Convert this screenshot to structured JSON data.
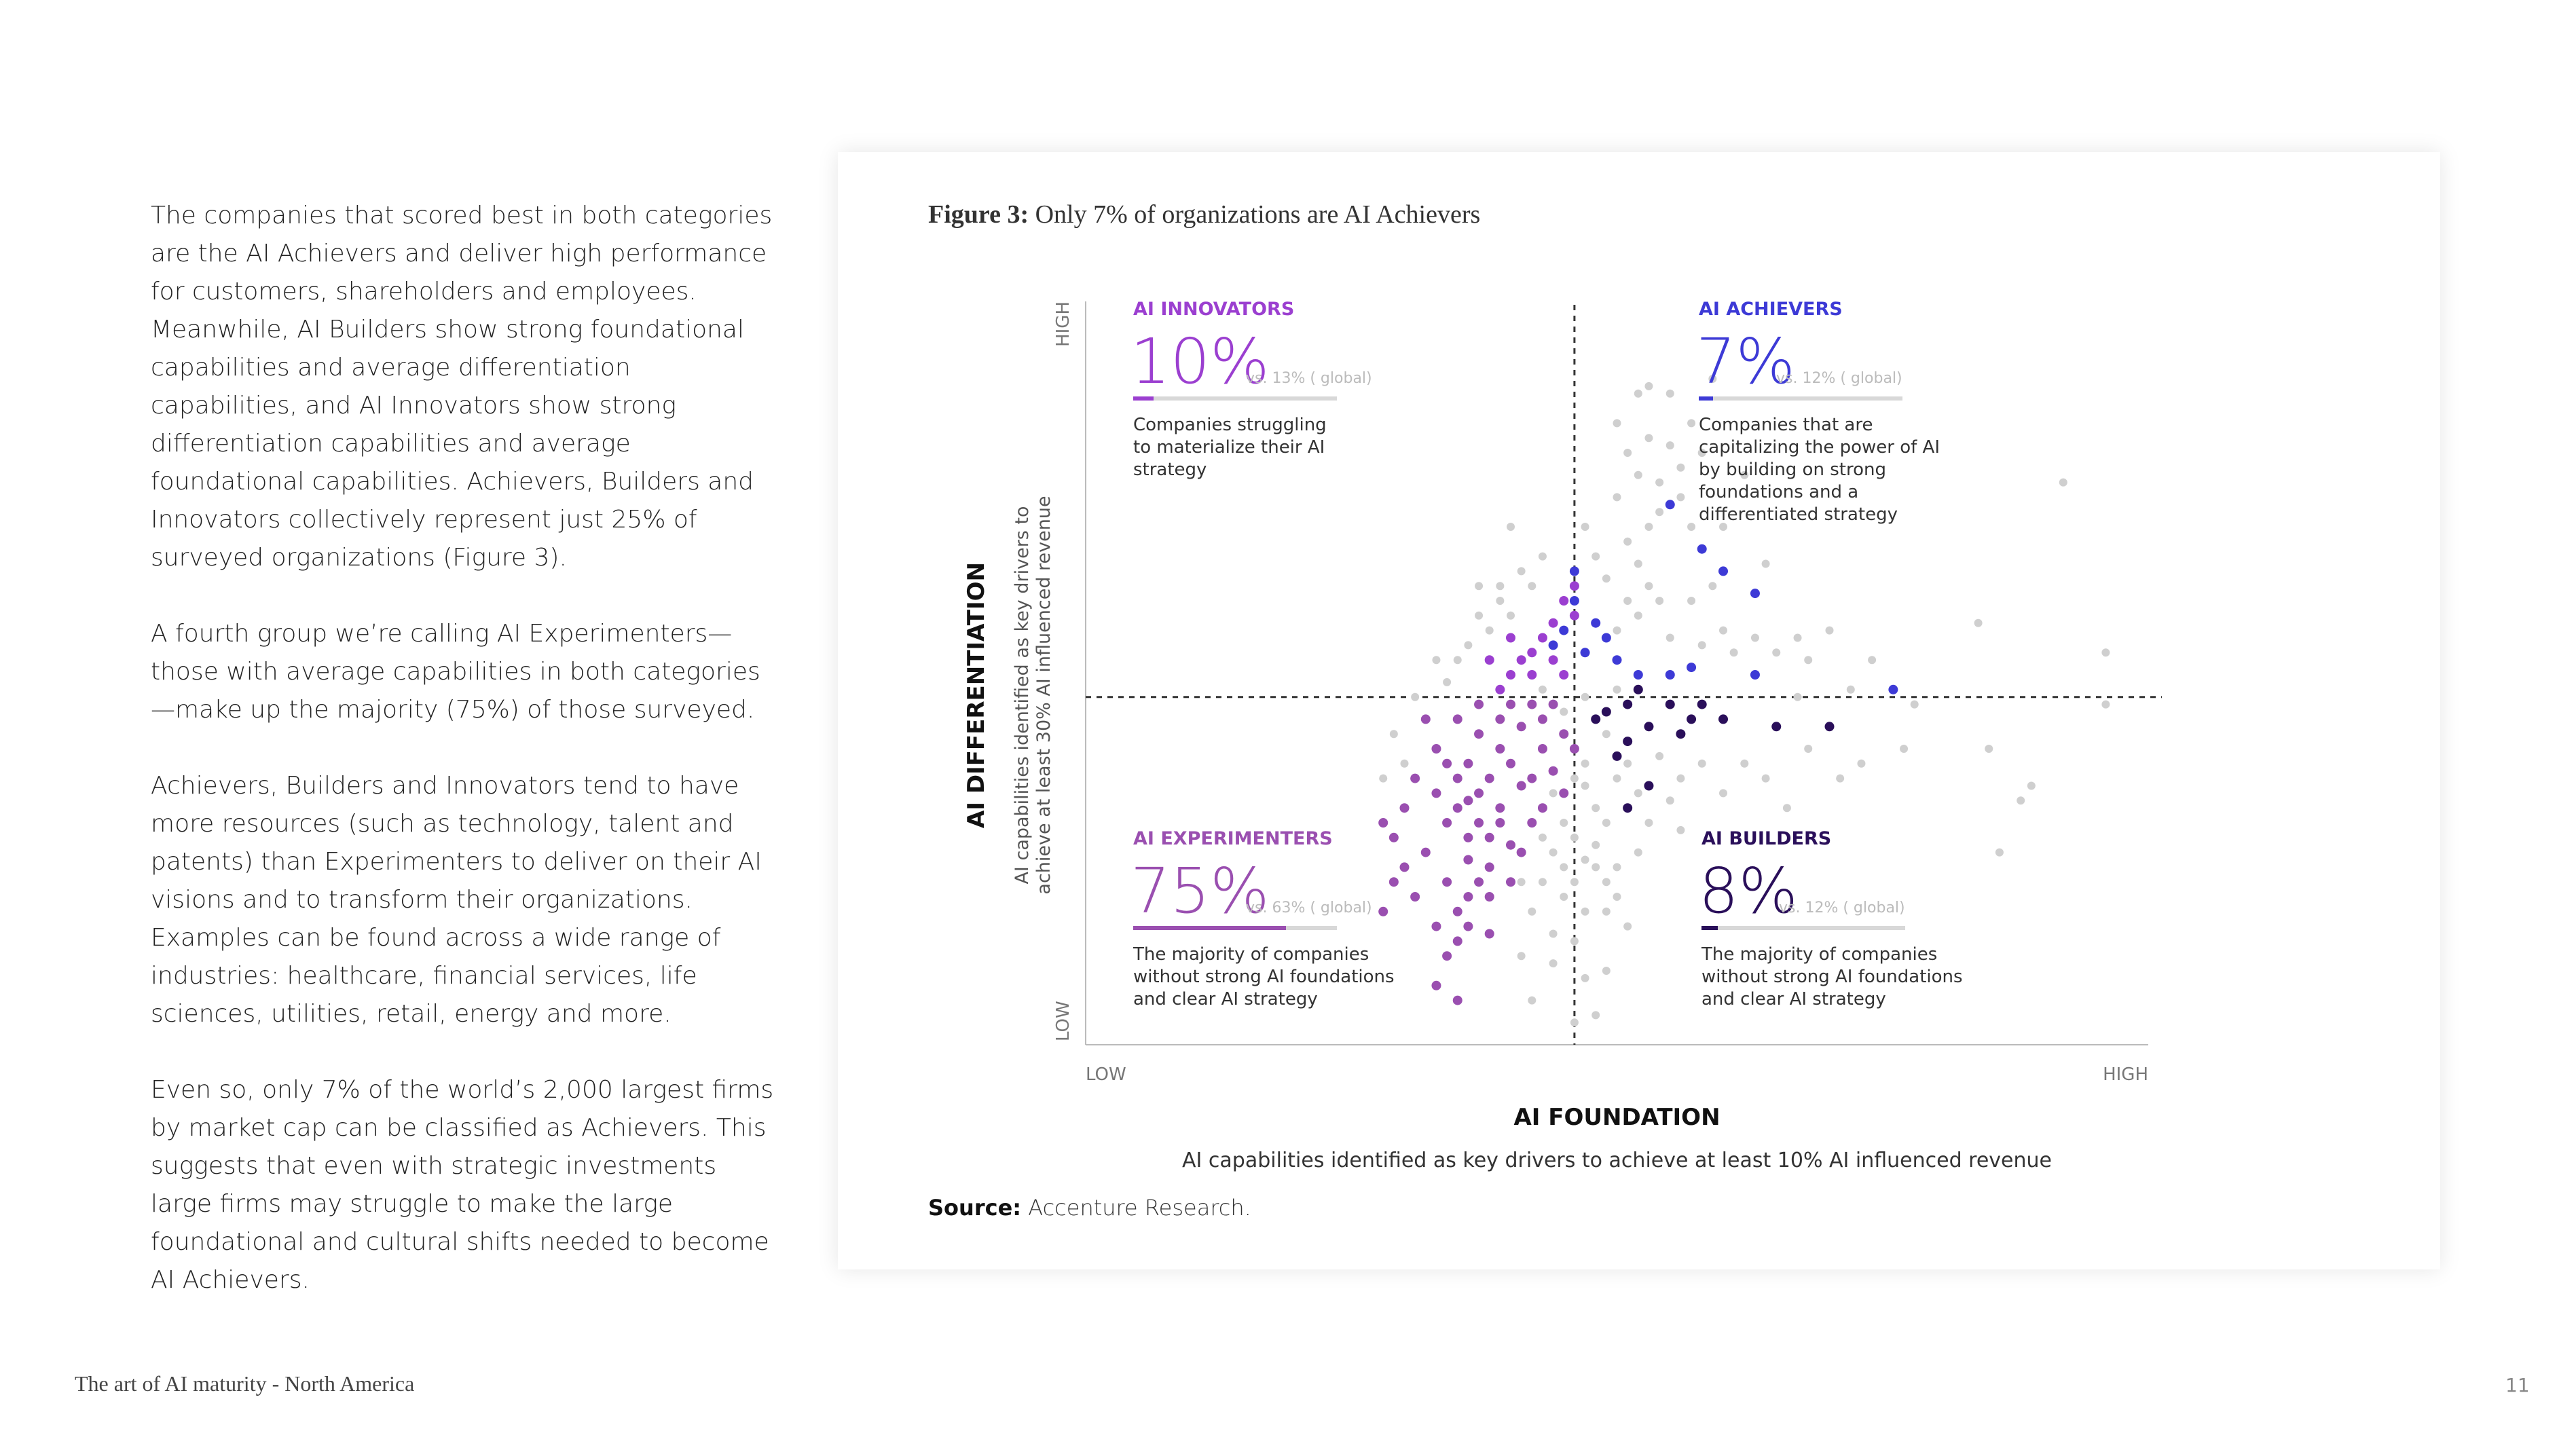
{
  "body": {
    "paragraphs": [
      "The companies that scored best in both categories are the AI Achievers and deliver high performance for customers, shareholders and employees. Meanwhile, AI Builders show strong foundational capabilities and average differentiation capabilities, and AI Innovators show strong differentiation capabilities and average foundational capabilities. Achievers, Builders and Innovators collectively represent just 25% of surveyed organizations (Figure 3).",
      "A fourth group we’re calling AI Experimenters—those with average capabilities in both categories—make up the majority (75%) of those surveyed.",
      "Achievers, Builders and Innovators tend to have more resources (such as technology, talent and patents) than Experimenters to deliver on their AI visions and to transform their organizations. Examples can be found across a wide range of industries: healthcare, financial services, life sciences, utilities, retail, energy and more.",
      "Even so, only 7% of the world’s 2,000 largest firms by market cap can be classified as Achievers. This suggests that even with strategic investments large firms may struggle to make the large foundational and cultural shifts needed to become AI Achievers."
    ]
  },
  "figure": {
    "label": "Figure 3:",
    "title": "Only 7% of organizations are AI Achievers",
    "source_label": "Source:",
    "source_text": "Accenture Research."
  },
  "chart_data": {
    "type": "scatter",
    "title": "Only 7% of organizations are AI Achievers",
    "xlabel": "AI FOUNDATION",
    "xlabel_sub": "AI capabilities identified as key drivers to achieve at least 10% AI influenced revenue",
    "ylabel": "AI DIFFERENTIATION",
    "ylabel_sub_1": "AI capabilities identified as key drivers to",
    "ylabel_sub_2": "achieve at least 30% AI influenced revenue",
    "x_ticks": [
      "LOW",
      "HIGH"
    ],
    "y_ticks": [
      "LOW",
      "HIGH"
    ],
    "xlim": [
      0,
      1
    ],
    "ylim": [
      0,
      1
    ],
    "thresholds": {
      "x": 0.46,
      "y": 0.47
    },
    "colors": {
      "innovators": "#9b3fd0",
      "achievers": "#3d3ad6",
      "experimenters": "#9a4fb0",
      "builders": "#2a0f5a",
      "other": "#cfcfcf",
      "track": "#d8d8d8"
    },
    "quadrants": [
      {
        "key": "innovators",
        "name": "AI INNOVATORS",
        "percent": "10%",
        "compare": "vs. 13% ( global)",
        "share": 0.1,
        "desc": [
          "Companies struggling",
          "to materialize their AI",
          "strategy"
        ]
      },
      {
        "key": "achievers",
        "name": "AI ACHIEVERS",
        "percent": "7%",
        "compare": "vs. 12% ( global)",
        "share": 0.07,
        "desc": [
          "Companies that are",
          "capitalizing the power of AI",
          "by building on strong",
          "foundations and a",
          "differentiated strategy"
        ]
      },
      {
        "key": "experimenters",
        "name": "AI EXPERIMENTERS",
        "percent": "75%",
        "compare": "vs. 63% ( global)",
        "share": 0.75,
        "desc": [
          "The majority of companies",
          "without strong AI foundations",
          "and clear AI strategy"
        ]
      },
      {
        "key": "builders",
        "name": "AI BUILDERS",
        "percent": "8%",
        "compare": "vs. 12% ( global)",
        "share": 0.08,
        "desc": [
          "The majority of companies",
          "without strong AI foundations",
          "and clear AI strategy"
        ]
      }
    ],
    "series": [
      {
        "name": "AI ACHIEVERS",
        "points": [
          [
            0.46,
            0.6
          ],
          [
            0.48,
            0.57
          ],
          [
            0.49,
            0.55
          ],
          [
            0.47,
            0.53
          ],
          [
            0.5,
            0.52
          ],
          [
            0.45,
            0.56
          ],
          [
            0.52,
            0.5
          ],
          [
            0.55,
            0.5
          ],
          [
            0.58,
            0.67
          ],
          [
            0.6,
            0.64
          ],
          [
            0.63,
            0.61
          ],
          [
            0.57,
            0.51
          ],
          [
            0.63,
            0.5
          ],
          [
            0.76,
            0.48
          ],
          [
            0.55,
            0.73
          ],
          [
            0.46,
            0.64
          ],
          [
            0.44,
            0.54
          ]
        ]
      },
      {
        "name": "AI BUILDERS",
        "points": [
          [
            0.48,
            0.44
          ],
          [
            0.51,
            0.46
          ],
          [
            0.53,
            0.43
          ],
          [
            0.55,
            0.46
          ],
          [
            0.57,
            0.44
          ],
          [
            0.56,
            0.42
          ],
          [
            0.6,
            0.44
          ],
          [
            0.65,
            0.43
          ],
          [
            0.7,
            0.43
          ],
          [
            0.51,
            0.41
          ],
          [
            0.53,
            0.35
          ],
          [
            0.5,
            0.39
          ],
          [
            0.51,
            0.32
          ],
          [
            0.58,
            0.46
          ],
          [
            0.49,
            0.45
          ],
          [
            0.52,
            0.48
          ]
        ]
      },
      {
        "name": "AI INNOVATORS",
        "points": [
          [
            0.46,
            0.58
          ],
          [
            0.45,
            0.6
          ],
          [
            0.43,
            0.55
          ],
          [
            0.44,
            0.52
          ],
          [
            0.42,
            0.5
          ],
          [
            0.41,
            0.52
          ],
          [
            0.4,
            0.5
          ],
          [
            0.39,
            0.48
          ],
          [
            0.38,
            0.52
          ],
          [
            0.46,
            0.62
          ],
          [
            0.44,
            0.57
          ],
          [
            0.42,
            0.53
          ],
          [
            0.4,
            0.55
          ],
          [
            0.45,
            0.5
          ]
        ]
      },
      {
        "name": "AI EXPERIMENTERS",
        "points": [
          [
            0.32,
            0.44
          ],
          [
            0.33,
            0.4
          ],
          [
            0.34,
            0.38
          ],
          [
            0.35,
            0.36
          ],
          [
            0.36,
            0.33
          ],
          [
            0.37,
            0.3
          ],
          [
            0.38,
            0.28
          ],
          [
            0.39,
            0.32
          ],
          [
            0.4,
            0.27
          ],
          [
            0.41,
            0.35
          ],
          [
            0.42,
            0.3
          ],
          [
            0.43,
            0.4
          ],
          [
            0.44,
            0.37
          ],
          [
            0.45,
            0.42
          ],
          [
            0.36,
            0.25
          ],
          [
            0.37,
            0.22
          ],
          [
            0.38,
            0.2
          ],
          [
            0.35,
            0.18
          ],
          [
            0.34,
            0.22
          ],
          [
            0.33,
            0.16
          ],
          [
            0.32,
            0.26
          ],
          [
            0.31,
            0.2
          ],
          [
            0.3,
            0.24
          ],
          [
            0.3,
            0.32
          ],
          [
            0.29,
            0.28
          ],
          [
            0.35,
            0.44
          ],
          [
            0.37,
            0.42
          ],
          [
            0.39,
            0.4
          ],
          [
            0.41,
            0.43
          ],
          [
            0.43,
            0.44
          ],
          [
            0.36,
            0.38
          ],
          [
            0.38,
            0.36
          ],
          [
            0.4,
            0.38
          ],
          [
            0.42,
            0.36
          ],
          [
            0.34,
            0.3
          ],
          [
            0.36,
            0.28
          ],
          [
            0.38,
            0.24
          ],
          [
            0.4,
            0.22
          ],
          [
            0.33,
            0.34
          ],
          [
            0.35,
            0.32
          ],
          [
            0.37,
            0.34
          ],
          [
            0.39,
            0.3
          ],
          [
            0.41,
            0.26
          ],
          [
            0.34,
            0.12
          ],
          [
            0.35,
            0.14
          ],
          [
            0.33,
            0.08
          ],
          [
            0.28,
            0.18
          ],
          [
            0.29,
            0.22
          ],
          [
            0.36,
            0.2
          ],
          [
            0.39,
            0.44
          ],
          [
            0.4,
            0.46
          ],
          [
            0.42,
            0.46
          ],
          [
            0.44,
            0.46
          ],
          [
            0.46,
            0.4
          ],
          [
            0.45,
            0.34
          ],
          [
            0.43,
            0.32
          ],
          [
            0.37,
            0.46
          ],
          [
            0.31,
            0.36
          ],
          [
            0.28,
            0.3
          ],
          [
            0.36,
            0.16
          ],
          [
            0.38,
            0.15
          ],
          [
            0.35,
            0.06
          ]
        ]
      },
      {
        "name": "Other",
        "points": [
          [
            0.47,
            0.35
          ],
          [
            0.48,
            0.32
          ],
          [
            0.49,
            0.3
          ],
          [
            0.5,
            0.36
          ],
          [
            0.48,
            0.27
          ],
          [
            0.49,
            0.22
          ],
          [
            0.5,
            0.24
          ],
          [
            0.47,
            0.25
          ],
          [
            0.46,
            0.28
          ],
          [
            0.44,
            0.26
          ],
          [
            0.43,
            0.28
          ],
          [
            0.45,
            0.2
          ],
          [
            0.44,
            0.15
          ],
          [
            0.42,
            0.18
          ],
          [
            0.46,
            0.14
          ],
          [
            0.47,
            0.18
          ],
          [
            0.49,
            0.18
          ],
          [
            0.52,
            0.26
          ],
          [
            0.53,
            0.3
          ],
          [
            0.55,
            0.33
          ],
          [
            0.56,
            0.36
          ],
          [
            0.58,
            0.38
          ],
          [
            0.6,
            0.34
          ],
          [
            0.62,
            0.38
          ],
          [
            0.64,
            0.36
          ],
          [
            0.66,
            0.32
          ],
          [
            0.68,
            0.4
          ],
          [
            0.71,
            0.36
          ],
          [
            0.73,
            0.38
          ],
          [
            0.77,
            0.4
          ],
          [
            0.85,
            0.4
          ],
          [
            0.88,
            0.33
          ],
          [
            0.89,
            0.35
          ],
          [
            0.86,
            0.26
          ],
          [
            0.96,
            0.46
          ],
          [
            0.5,
            0.56
          ],
          [
            0.51,
            0.6
          ],
          [
            0.52,
            0.58
          ],
          [
            0.53,
            0.62
          ],
          [
            0.54,
            0.6
          ],
          [
            0.52,
            0.65
          ],
          [
            0.51,
            0.68
          ],
          [
            0.53,
            0.7
          ],
          [
            0.54,
            0.72
          ],
          [
            0.49,
            0.63
          ],
          [
            0.48,
            0.66
          ],
          [
            0.5,
            0.74
          ],
          [
            0.52,
            0.77
          ],
          [
            0.51,
            0.8
          ],
          [
            0.5,
            0.84
          ],
          [
            0.52,
            0.88
          ],
          [
            0.53,
            0.89
          ],
          [
            0.55,
            0.81
          ],
          [
            0.54,
            0.76
          ],
          [
            0.56,
            0.74
          ],
          [
            0.57,
            0.7
          ],
          [
            0.47,
            0.7
          ],
          [
            0.42,
            0.62
          ],
          [
            0.39,
            0.6
          ],
          [
            0.38,
            0.56
          ],
          [
            0.37,
            0.58
          ],
          [
            0.36,
            0.54
          ],
          [
            0.35,
            0.52
          ],
          [
            0.34,
            0.49
          ],
          [
            0.43,
            0.66
          ],
          [
            0.41,
            0.64
          ],
          [
            0.4,
            0.58
          ],
          [
            0.39,
            0.62
          ],
          [
            0.37,
            0.62
          ],
          [
            0.57,
            0.6
          ],
          [
            0.58,
            0.54
          ],
          [
            0.6,
            0.56
          ],
          [
            0.61,
            0.53
          ],
          [
            0.63,
            0.55
          ],
          [
            0.65,
            0.53
          ],
          [
            0.67,
            0.55
          ],
          [
            0.7,
            0.56
          ],
          [
            0.67,
            0.47
          ],
          [
            0.68,
            0.52
          ],
          [
            0.72,
            0.48
          ],
          [
            0.74,
            0.52
          ],
          [
            0.78,
            0.46
          ],
          [
            0.84,
            0.57
          ],
          [
            0.96,
            0.53
          ],
          [
            0.92,
            0.76
          ],
          [
            0.59,
            0.9
          ],
          [
            0.58,
            0.8
          ],
          [
            0.57,
            0.84
          ],
          [
            0.56,
            0.78
          ],
          [
            0.55,
            0.88
          ],
          [
            0.53,
            0.82
          ],
          [
            0.39,
            0.4
          ],
          [
            0.41,
            0.22
          ],
          [
            0.43,
            0.22
          ],
          [
            0.45,
            0.24
          ],
          [
            0.46,
            0.22
          ],
          [
            0.48,
            0.24
          ],
          [
            0.5,
            0.2
          ],
          [
            0.51,
            0.16
          ],
          [
            0.49,
            0.1
          ],
          [
            0.47,
            0.09
          ],
          [
            0.44,
            0.11
          ],
          [
            0.41,
            0.12
          ],
          [
            0.42,
            0.06
          ],
          [
            0.48,
            0.04
          ],
          [
            0.46,
            0.03
          ],
          [
            0.33,
            0.52
          ],
          [
            0.31,
            0.47
          ],
          [
            0.29,
            0.42
          ],
          [
            0.3,
            0.38
          ],
          [
            0.28,
            0.36
          ],
          [
            0.47,
            0.47
          ],
          [
            0.45,
            0.45
          ],
          [
            0.43,
            0.48
          ],
          [
            0.5,
            0.48
          ],
          [
            0.55,
            0.55
          ],
          [
            0.59,
            0.62
          ],
          [
            0.64,
            0.65
          ],
          [
            0.6,
            0.7
          ],
          [
            0.62,
            0.77
          ],
          [
            0.4,
            0.7
          ],
          [
            0.49,
            0.42
          ],
          [
            0.51,
            0.38
          ],
          [
            0.54,
            0.39
          ],
          [
            0.52,
            0.34
          ],
          [
            0.56,
            0.29
          ],
          [
            0.47,
            0.38
          ],
          [
            0.45,
            0.3
          ],
          [
            0.44,
            0.34
          ],
          [
            0.46,
            0.36
          ]
        ]
      }
    ]
  },
  "footer": {
    "title": "The art of AI maturity - North America",
    "page": "11"
  }
}
